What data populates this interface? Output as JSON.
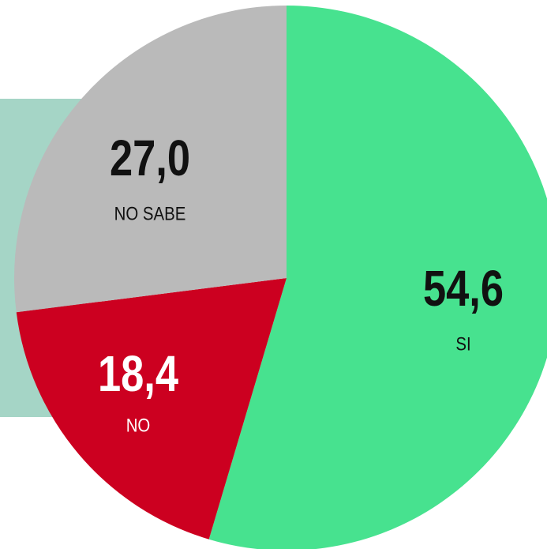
{
  "chart_data": {
    "type": "pie",
    "categories": [
      "SI",
      "NO",
      "NO SABE"
    ],
    "values": [
      54.6,
      18.4,
      27.0
    ],
    "value_labels": [
      "54,6",
      "18,4",
      "27,0"
    ],
    "colors": [
      "#47e28f",
      "#cc0020",
      "#bababa"
    ]
  }
}
